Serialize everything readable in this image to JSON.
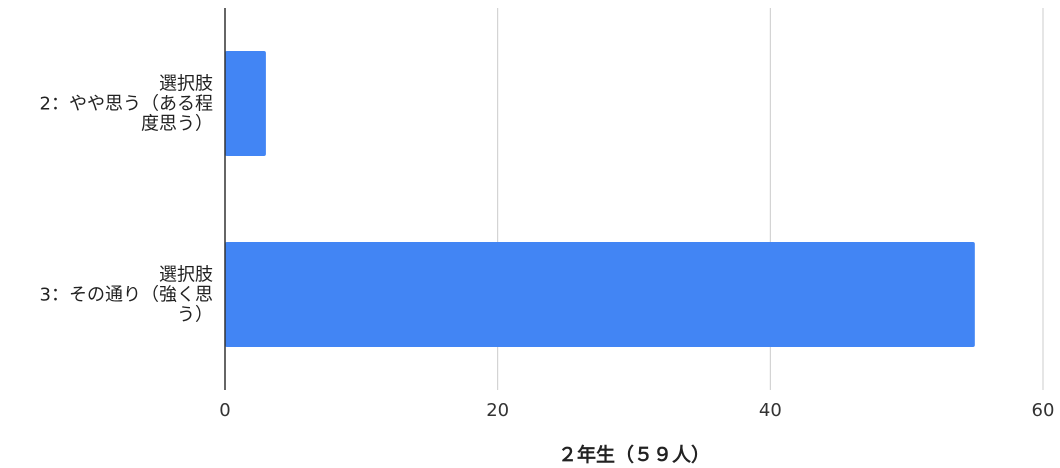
{
  "chart_data": {
    "type": "bar",
    "orientation": "horizontal",
    "categories": [
      [
        "選択肢",
        "2：やや思う（ある程",
        "度思う）"
      ],
      [
        "選択肢",
        "3：その通り（強く思",
        "う）"
      ]
    ],
    "values": [
      3,
      55
    ],
    "xlabel": "２年生（５９人）",
    "ylabel": "",
    "xlim": [
      0,
      60
    ],
    "xticks": [
      0,
      20,
      40,
      60
    ],
    "grid": true,
    "colors": {
      "bar": "#4285f4",
      "grid": "#cccccc",
      "axis": "#333333"
    }
  }
}
